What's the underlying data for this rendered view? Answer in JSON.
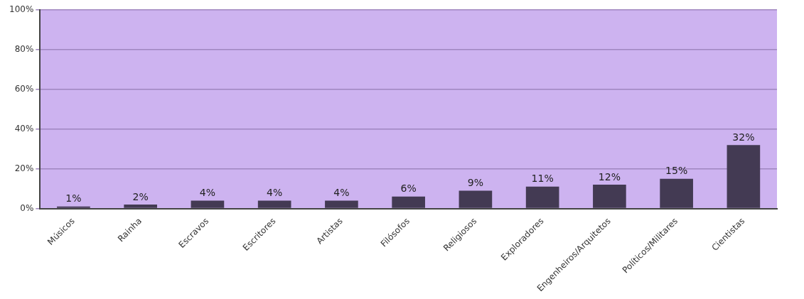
{
  "chart_data": {
    "type": "bar",
    "categories": [
      "Músicos",
      "Rainha",
      "Escravos",
      "Escritores",
      "Artistas",
      "Filósofos",
      "Religiosos",
      "Exploradores",
      "Engenheiros/Arquitetos",
      "Políticos/Militares",
      "Cientistas"
    ],
    "values": [
      1,
      2,
      4,
      4,
      4,
      6,
      9,
      11,
      12,
      15,
      32
    ],
    "value_labels": [
      "1%",
      "2%",
      "4%",
      "4%",
      "4%",
      "6%",
      "9%",
      "11%",
      "12%",
      "15%",
      "32%"
    ],
    "color": "#433a53",
    "ylim": [
      0,
      100
    ],
    "yticks": [
      {
        "value": 0,
        "label": "0%"
      },
      {
        "value": 20,
        "label": "20%"
      },
      {
        "value": 40,
        "label": "40%"
      },
      {
        "value": 60,
        "label": "60%"
      },
      {
        "value": 80,
        "label": "80%"
      },
      {
        "value": 100,
        "label": "100%"
      }
    ],
    "grid": "y",
    "legend": false
  }
}
